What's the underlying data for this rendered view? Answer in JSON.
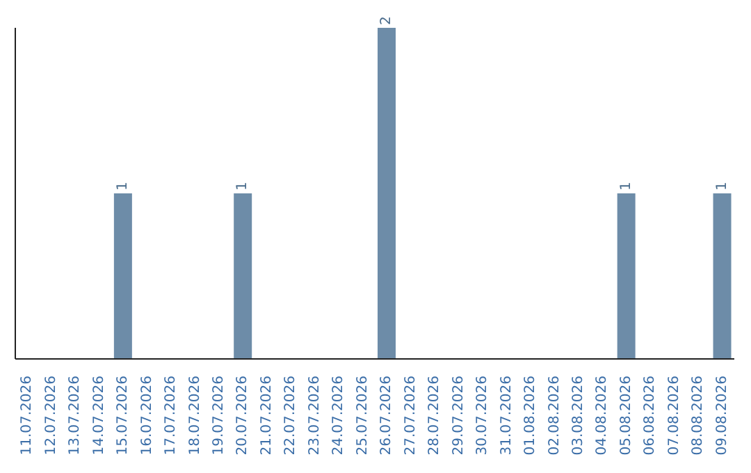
{
  "chart_data": {
    "type": "bar",
    "categories": [
      "11.07.2026",
      "12.07.2026",
      "13.07.2026",
      "14.07.2026",
      "15.07.2026",
      "16.07.2026",
      "17.07.2026",
      "18.07.2026",
      "19.07.2026",
      "20.07.2026",
      "21.07.2026",
      "22.07.2026",
      "23.07.2026",
      "24.07.2026",
      "25.07.2026",
      "26.07.2026",
      "27.07.2026",
      "28.07.2026",
      "29.07.2026",
      "30.07.2026",
      "31.07.2026",
      "01.08.2026",
      "02.08.2026",
      "03.08.2026",
      "04.08.2026",
      "05.08.2026",
      "06.08.2026",
      "07.08.2026",
      "08.08.2026",
      "09.08.2026"
    ],
    "values": [
      0,
      0,
      0,
      0,
      1,
      0,
      0,
      0,
      0,
      1,
      0,
      0,
      0,
      0,
      0,
      2,
      0,
      0,
      0,
      0,
      0,
      0,
      0,
      0,
      0,
      1,
      0,
      0,
      0,
      1
    ],
    "value_labels": [
      null,
      null,
      null,
      null,
      "1",
      null,
      null,
      null,
      null,
      "1",
      null,
      null,
      null,
      null,
      null,
      "2",
      null,
      null,
      null,
      null,
      null,
      null,
      null,
      null,
      null,
      "1",
      null,
      null,
      null,
      "1"
    ],
    "color": "#6d8ca8",
    "grid": false,
    "legend": false
  }
}
